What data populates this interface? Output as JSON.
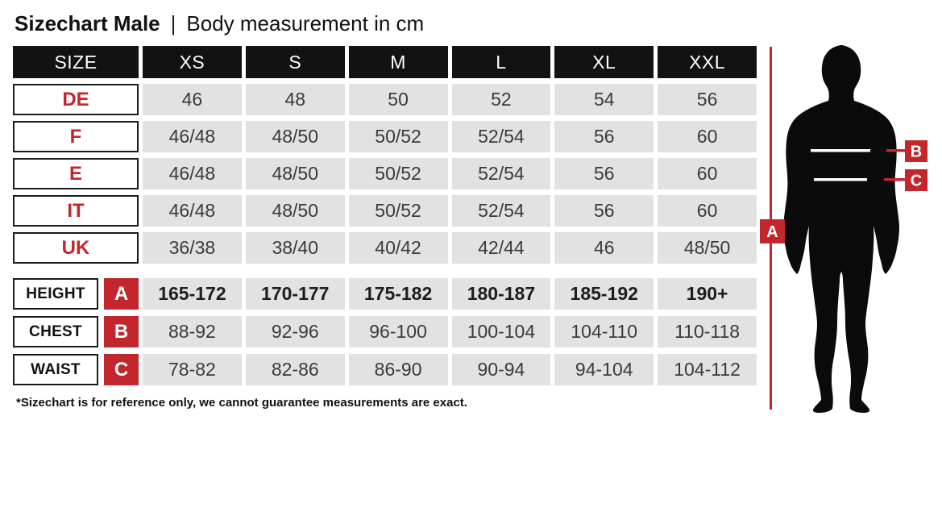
{
  "title": {
    "main": "Sizechart Male",
    "separator": "|",
    "subtitle": "Body measurement in cm"
  },
  "footnote": "*Sizechart is for reference only, we cannot guarantee measurements are exact.",
  "colors": {
    "accent_red": "#c1272d",
    "header_black": "#121212",
    "cell_gray": "#e2e2e2",
    "cell_text": "#3a3a3a"
  },
  "chart_data": {
    "type": "table",
    "title": "Sizechart Male — Body measurement in cm",
    "unit": "cm",
    "columns": [
      "SIZE",
      "XS",
      "S",
      "M",
      "L",
      "XL",
      "XXL"
    ],
    "rows": [
      {
        "label": "DE",
        "values": [
          "46",
          "48",
          "50",
          "52",
          "54",
          "56"
        ]
      },
      {
        "label": "F",
        "values": [
          "46/48",
          "48/50",
          "50/52",
          "52/54",
          "56",
          "60"
        ]
      },
      {
        "label": "E",
        "values": [
          "46/48",
          "48/50",
          "50/52",
          "52/54",
          "56",
          "60"
        ]
      },
      {
        "label": "IT",
        "values": [
          "46/48",
          "48/50",
          "50/52",
          "52/54",
          "56",
          "60"
        ]
      },
      {
        "label": "UK",
        "values": [
          "36/38",
          "38/40",
          "40/42",
          "42/44",
          "46",
          "48/50"
        ]
      }
    ],
    "measurement_rows": [
      {
        "label": "HEIGHT",
        "marker": "A",
        "values": [
          "165-172",
          "170-177",
          "175-182",
          "180-187",
          "185-192",
          "190+"
        ]
      },
      {
        "label": "CHEST",
        "marker": "B",
        "values": [
          "88-92",
          "92-96",
          "96-100",
          "100-104",
          "104-110",
          "110-118"
        ]
      },
      {
        "label": "WAIST",
        "marker": "C",
        "values": [
          "78-82",
          "82-86",
          "86-90",
          "90-94",
          "94-104",
          "104-112"
        ]
      }
    ]
  },
  "figure": {
    "markers": [
      "A",
      "B",
      "C"
    ]
  }
}
